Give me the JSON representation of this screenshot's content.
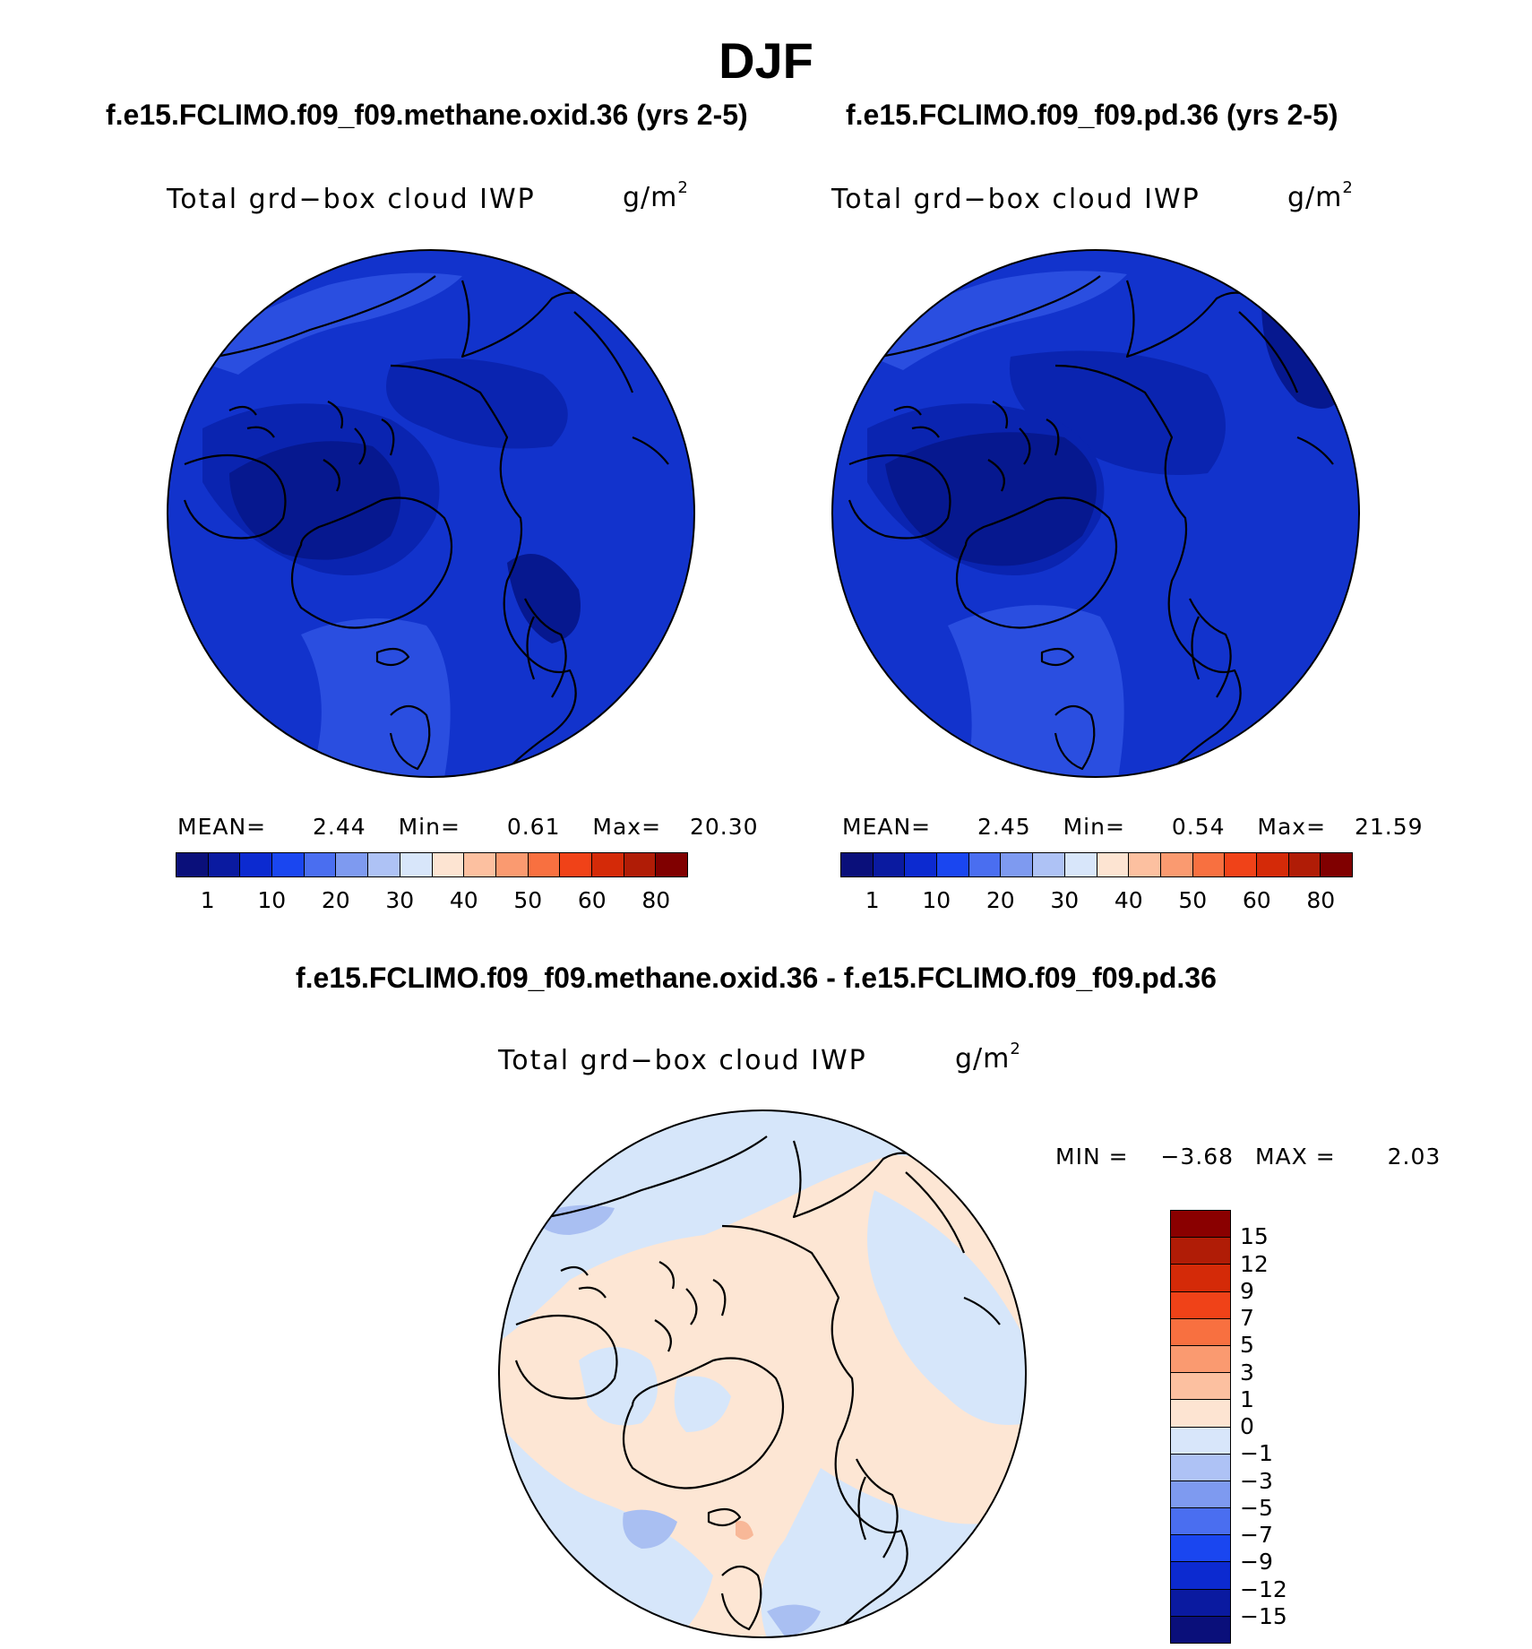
{
  "figure": {
    "title": "DJF"
  },
  "panels": [
    {
      "case_title": "f.e15.FCLIMO.f09_f09.methane.oxid.36 (yrs 2-5)",
      "variable": "Total grd−box cloud IWP",
      "units_base": "g/m",
      "units_exp": "2",
      "stats": {
        "mean_label": "MEAN=",
        "mean": "2.44",
        "min_label": "Min=",
        "min": "0.61",
        "max_label": "Max=",
        "max": "20.30"
      },
      "colors": {
        "ocean": "#1233cc",
        "low_region": "#06188f",
        "mid_region": "#0a24b0",
        "high_patch": "#2a4ee0"
      }
    },
    {
      "case_title": "f.e15.FCLIMO.f09_f09.pd.36 (yrs 2-5)",
      "variable": "Total grd−box cloud IWP",
      "units_base": "g/m",
      "units_exp": "2",
      "stats": {
        "mean_label": "MEAN=",
        "mean": "2.45",
        "min_label": "Min=",
        "min": "0.54",
        "max_label": "Max=",
        "max": "21.59"
      },
      "colors": {
        "ocean": "#1233cc",
        "low_region": "#06188f",
        "mid_region": "#0a24b0",
        "high_patch": "#2a4ee0"
      }
    }
  ],
  "horizontal_colorbar": {
    "colors": [
      "#0a0f7a",
      "#0a1aa0",
      "#0c2ad0",
      "#1a46f0",
      "#4a6ef0",
      "#7e9af0",
      "#aec2f5",
      "#d8e6fa",
      "#fde4d2",
      "#fcc0a0",
      "#fa9a70",
      "#f87040",
      "#f04218",
      "#d42a08",
      "#b01c06",
      "#800000"
    ],
    "tick_labels": [
      "1",
      "10",
      "20",
      "30",
      "40",
      "50",
      "60",
      "80"
    ]
  },
  "difference": {
    "title": "f.e15.FCLIMO.f09_f09.methane.oxid.36 - f.e15.FCLIMO.f09_f09.pd.36",
    "variable": "Total grd−box cloud IWP",
    "units_base": "g/m",
    "units_exp": "2",
    "min_label": "MIN =",
    "min": "−3.68",
    "max_label": "MAX =",
    "max": "2.03",
    "colors": {
      "background": "#fde6d4",
      "negative": "#d6e6fa",
      "negative_strong": "#a9bff2",
      "positive_strong": "#f8b898"
    },
    "colorbar": {
      "colors": [
        "#8a0000",
        "#b01c06",
        "#d42a08",
        "#f04218",
        "#f87040",
        "#fa9a70",
        "#fcc0a0",
        "#fde4d2",
        "#d8e6fa",
        "#aec2f5",
        "#7e9af0",
        "#4a6ef0",
        "#1a46f0",
        "#0c2ad0",
        "#0a1aa0",
        "#0a0f7a"
      ],
      "tick_labels": [
        "15",
        "12",
        "9",
        "7",
        "5",
        "3",
        "1",
        "0",
        "−1",
        "−3",
        "−5",
        "−7",
        "−9",
        "−12",
        "−15"
      ]
    }
  }
}
